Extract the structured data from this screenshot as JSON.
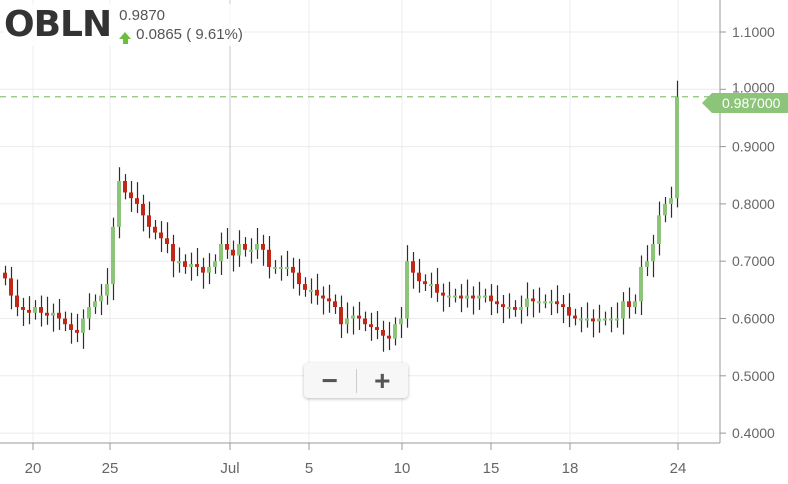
{
  "header": {
    "symbol": "OBLN",
    "price": "0.9870",
    "change": "0.0865",
    "change_pct": "( 9.61%)",
    "direction_icon": "arrow-up-icon"
  },
  "current_price_label": "0.987000",
  "zoom_controls": {
    "zoom_out": "−",
    "zoom_in": "+"
  },
  "colors": {
    "up": "#8cc47a",
    "down": "#c0281a",
    "wick": "#2b2f33",
    "price_line": "#8cc47a",
    "arrow": "#6cbf3c"
  },
  "chart_data": {
    "type": "candlestick",
    "title": "",
    "grid": true,
    "ylim": [
      0.38,
      1.12
    ],
    "y_ticks": [
      "1.1000",
      "1.0000",
      "0.9000",
      "0.8000",
      "0.7000",
      "0.6000",
      "0.5000",
      "0.4000"
    ],
    "x_ticks": [
      "20",
      "25",
      "Jul",
      "5",
      "10",
      "15",
      "18",
      "24"
    ],
    "last_price": 0.987,
    "close": [
      0.67,
      0.64,
      0.62,
      0.615,
      0.61,
      0.62,
      0.61,
      0.605,
      0.61,
      0.6,
      0.59,
      0.58,
      0.575,
      0.6,
      0.62,
      0.63,
      0.64,
      0.66,
      0.76,
      0.84,
      0.82,
      0.81,
      0.8,
      0.78,
      0.76,
      0.75,
      0.74,
      0.73,
      0.7,
      0.7,
      0.69,
      0.695,
      0.69,
      0.68,
      0.69,
      0.7,
      0.73,
      0.72,
      0.71,
      0.73,
      0.72,
      0.72,
      0.73,
      0.72,
      0.69,
      0.69,
      0.69,
      0.69,
      0.68,
      0.66,
      0.65,
      0.65,
      0.64,
      0.635,
      0.63,
      0.62,
      0.59,
      0.6,
      0.605,
      0.6,
      0.59,
      0.585,
      0.58,
      0.57,
      0.565,
      0.59,
      0.6,
      0.7,
      0.68,
      0.665,
      0.66,
      0.66,
      0.645,
      0.64,
      0.64,
      0.64,
      0.635,
      0.64,
      0.635,
      0.64,
      0.64,
      0.63,
      0.625,
      0.62,
      0.62,
      0.615,
      0.62,
      0.635,
      0.63,
      0.63,
      0.63,
      0.63,
      0.625,
      0.62,
      0.605,
      0.6,
      0.6,
      0.6,
      0.595,
      0.6,
      0.6,
      0.6,
      0.6,
      0.63,
      0.62,
      0.63,
      0.69,
      0.7,
      0.73,
      0.78,
      0.8,
      0.81,
      0.987
    ]
  }
}
